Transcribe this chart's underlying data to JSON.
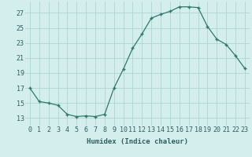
{
  "x": [
    0,
    1,
    2,
    3,
    4,
    5,
    6,
    7,
    8,
    9,
    10,
    11,
    12,
    13,
    14,
    15,
    16,
    17,
    18,
    19,
    20,
    21,
    22,
    23
  ],
  "y": [
    17,
    15.2,
    15,
    14.7,
    13.5,
    13.2,
    13.3,
    13.2,
    13.5,
    17,
    19.5,
    22.3,
    24.2,
    26.3,
    26.8,
    27.2,
    27.8,
    27.8,
    27.7,
    25.2,
    23.5,
    22.8,
    21.3,
    19.6
  ],
  "xlabel": "Humidex (Indice chaleur)",
  "xlim": [
    -0.5,
    23.5
  ],
  "ylim": [
    12,
    28.5
  ],
  "yticks": [
    13,
    15,
    17,
    19,
    21,
    23,
    25,
    27
  ],
  "xticks": [
    0,
    1,
    2,
    3,
    4,
    5,
    6,
    7,
    8,
    9,
    10,
    11,
    12,
    13,
    14,
    15,
    16,
    17,
    18,
    19,
    20,
    21,
    22,
    23
  ],
  "line_color": "#2d7a6a",
  "marker": "+",
  "bg_color": "#d4eeee",
  "grid_color": "#aed4d4",
  "font_color": "#2d5f5f",
  "label_fontsize": 6.5,
  "tick_fontsize": 6.0
}
